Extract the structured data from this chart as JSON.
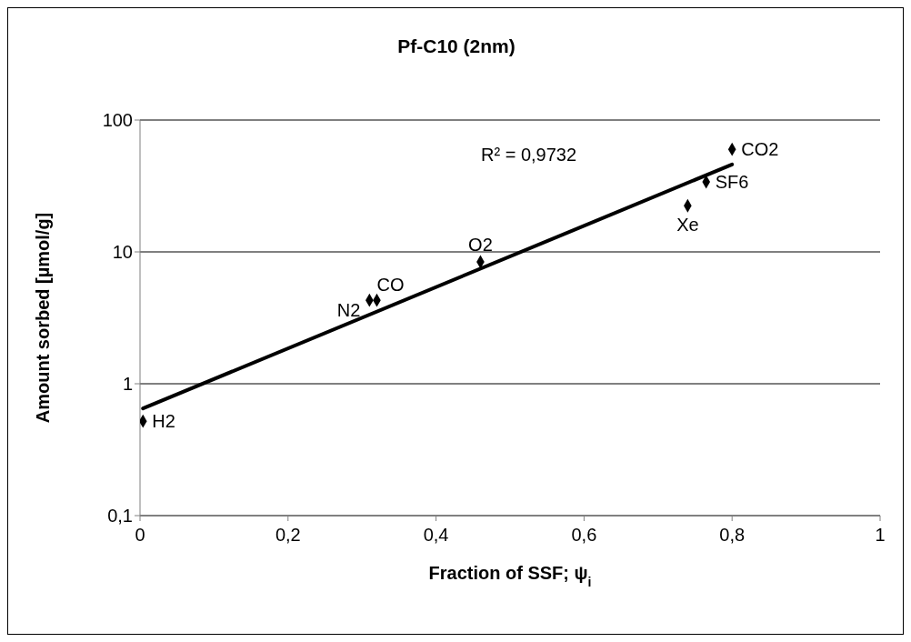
{
  "chart_data": {
    "type": "scatter",
    "title": "Pf-C10 (2nm)",
    "xlabel": "Fraction of SSF; ψ$_{i}$",
    "ylabel": "Amount sorbed [µmol/g]",
    "log": "y",
    "grid": "y",
    "line_style": "solid",
    "xlim": [
      0,
      1
    ],
    "xticks": [
      0,
      {
        "value": 0.2,
        "label": "0,2"
      },
      {
        "value": 0.4,
        "label": "0,4"
      },
      {
        "value": 0.6,
        "label": "0,6"
      },
      {
        "value": 0.8,
        "label": "0,8"
      },
      1
    ],
    "ylim": [
      0.1,
      100
    ],
    "yticks": [
      {
        "value": 0.1,
        "label": "0,1"
      },
      1,
      10,
      100
    ],
    "series": [
      {
        "color": "#000000",
        "marker": "diamond",
        "x": [
          0.004,
          0.31,
          0.32,
          0.46,
          0.74,
          0.765,
          0.8
        ],
        "values": [
          0.52,
          4.3,
          4.3,
          8.4,
          22.4,
          34,
          60
        ]
      },
      {
        "type": "line",
        "color": "#000000",
        "marker": "none",
        "x": [
          0.004,
          0.8
        ],
        "values": [
          0.65,
          46
        ]
      }
    ],
    "annotations": [
      {
        "text": "H2",
        "x": 0.004,
        "y": 0.52
      },
      {
        "text": "N2",
        "x": 0.31,
        "y": 4.3
      },
      {
        "text": "CO",
        "x": 0.32,
        "y": 4.3
      },
      {
        "text": "O2",
        "x": 0.46,
        "y": 8.4
      },
      {
        "text": "Xe",
        "x": 0.74,
        "y": 22.4
      },
      {
        "text": "SF6",
        "x": 0.765,
        "y": 34
      },
      {
        "text": "CO2",
        "x": 0.8,
        "y": 60
      },
      "R² = 0,9732"
    ]
  }
}
